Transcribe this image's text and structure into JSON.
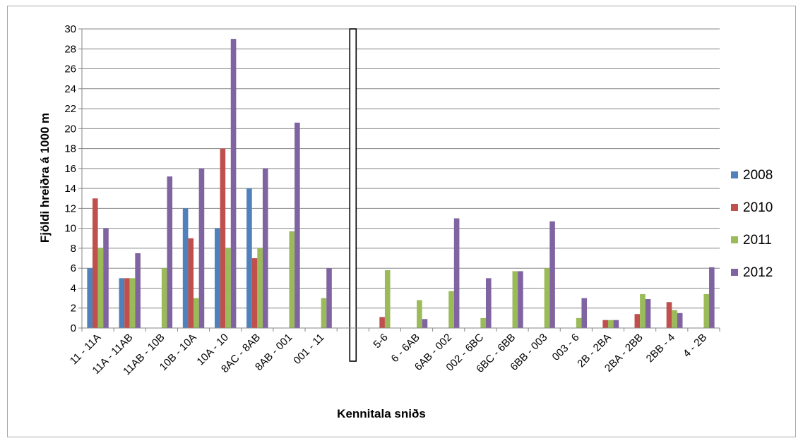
{
  "chart_data": {
    "type": "bar",
    "xlabel": "Kennitala sniðs",
    "ylabel": "Fjöldi hreiðra á 1000 m",
    "ylim": [
      0,
      30
    ],
    "y_ticks": [
      0,
      2,
      4,
      6,
      8,
      10,
      12,
      14,
      16,
      18,
      20,
      22,
      24,
      26,
      28,
      30
    ],
    "grid": true,
    "legend_position": "right",
    "categories": [
      "11 - 11A",
      "11A - 11AB",
      "11AB - 10B",
      "10B - 10A",
      "10A - 10",
      "8AC - 8AB",
      "8AB - 001",
      "001 - 11",
      "",
      "5-6",
      "6 - 6AB",
      "6AB - 002",
      "002 - 6BC",
      "6BC - 6BB",
      "6BB - 003",
      "003 - 6",
      "2B - 2BA",
      "2BA - 2BB",
      "2BB - 4",
      "4 - 2B"
    ],
    "series": [
      {
        "name": "2008",
        "color": "#4f81bd",
        "values": [
          6,
          5,
          0,
          12,
          10,
          14,
          0,
          0,
          null,
          0,
          0,
          0,
          0,
          0,
          0,
          0,
          0,
          0,
          0,
          0
        ]
      },
      {
        "name": "2010",
        "color": "#c0504d",
        "values": [
          13,
          5,
          0,
          9,
          18,
          7,
          0,
          0,
          null,
          1.1,
          0,
          0,
          0,
          0,
          0,
          0,
          0.8,
          1.4,
          2.6,
          0
        ]
      },
      {
        "name": "2011",
        "color": "#9bbb59",
        "values": [
          8,
          5,
          6,
          3,
          8,
          8,
          9.7,
          3,
          null,
          5.8,
          2.8,
          3.7,
          1,
          5.7,
          6,
          1,
          0.8,
          3.4,
          1.8,
          3.4
        ]
      },
      {
        "name": "2012",
        "color": "#8064a2",
        "values": [
          10,
          7.5,
          15.2,
          16,
          29,
          16,
          20.6,
          6,
          null,
          0,
          0.9,
          11,
          5,
          5.7,
          10.7,
          3,
          0.8,
          2.9,
          1.5,
          6.1
        ]
      }
    ],
    "separator_category_index": 8
  }
}
